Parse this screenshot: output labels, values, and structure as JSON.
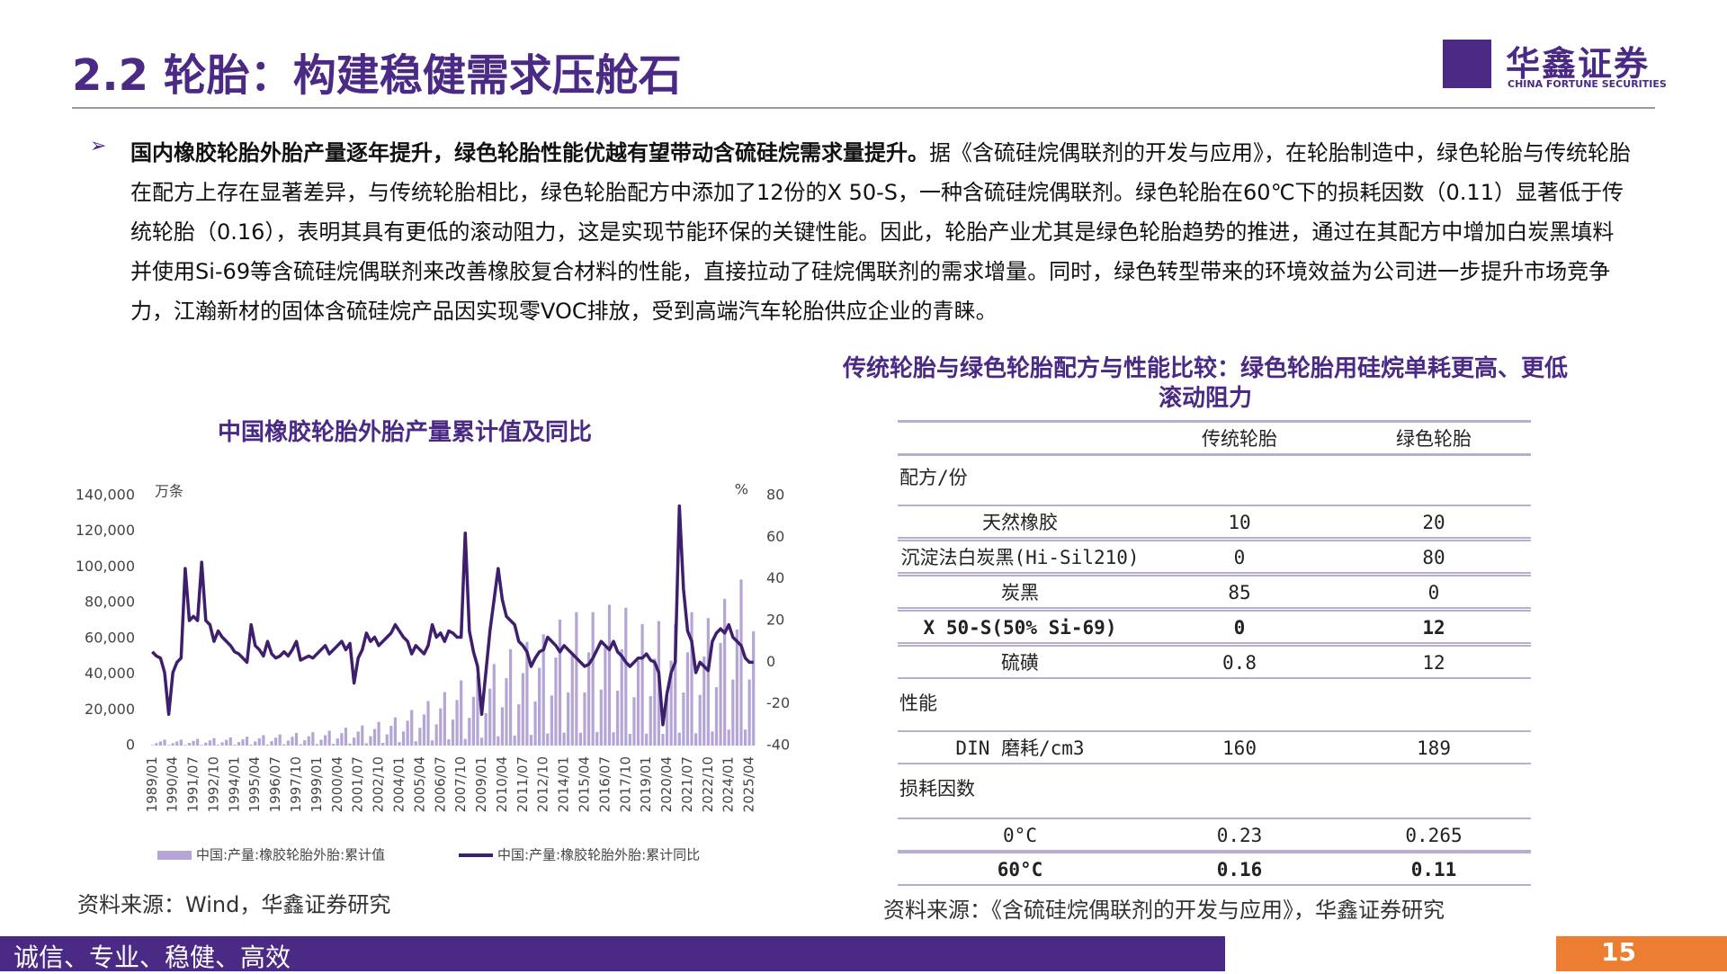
{
  "header": {
    "title": "2.2 轮胎：构建稳健需求压舱石",
    "logo_cn": "华鑫证券",
    "logo_en": "CHINA FORTUNE SECURITIES"
  },
  "bullet": {
    "bold": "国内橡胶轮胎外胎产量逐年提升，绿色轮胎性能优越有望带动含硫硅烷需求量提升。",
    "text": "据《含硫硅烷偶联剂的开发与应用》，在轮胎制造中，绿色轮胎与传统轮胎在配方上存在显著差异，与传统轮胎相比，绿色轮胎配方中添加了12份的X 50-S，一种含硫硅烷偶联剂。绿色轮胎在60℃下的损耗因数（0.11）显著低于传统轮胎（0.16），表明其具有更低的滚动阻力，这是实现节能环保的关键性能。因此，轮胎产业尤其是绿色轮胎趋势的推进，通过在其配方中增加白炭黑填料并使用Si-69等含硫硅烷偶联剂来改善橡胶复合材料的性能，直接拉动了硅烷偶联剂的需求增量。同时，绿色转型带来的环境效益为公司进一步提升市场竞争力，江瀚新材的固体含硫硅烷产品因实现零VOC排放，受到高端汽车轮胎供应企业的青睐。"
  },
  "chart_data": {
    "type": "bar-line",
    "title": "中国橡胶轮胎外胎产量累计值及同比",
    "ylabel": "万条",
    "y2label": "%",
    "categories": [
      "1989/01",
      null,
      null,
      null,
      null,
      "1990/04",
      null,
      null,
      null,
      null,
      "1991/07",
      null,
      null,
      null,
      null,
      "1992/10",
      null,
      null,
      null,
      null,
      "1994/01",
      null,
      null,
      null,
      null,
      "1995/04",
      null,
      null,
      null,
      null,
      "1996/07",
      null,
      null,
      null,
      null,
      "1997/10",
      null,
      null,
      null,
      null,
      "1999/01",
      null,
      null,
      null,
      null,
      "2000/04",
      null,
      null,
      null,
      null,
      "2001/07",
      null,
      null,
      null,
      null,
      "2002/10",
      null,
      null,
      null,
      null,
      "2004/01",
      null,
      null,
      null,
      null,
      "2005/04",
      null,
      null,
      null,
      null,
      "2006/07",
      null,
      null,
      null,
      null,
      "2007/10",
      null,
      null,
      null,
      null,
      "2009/01",
      null,
      null,
      null,
      null,
      "2010/04",
      null,
      null,
      null,
      null,
      "2011/07",
      null,
      null,
      null,
      null,
      "2012/10",
      null,
      null,
      null,
      null,
      "2014/01",
      null,
      null,
      null,
      null,
      "2015/04",
      null,
      null,
      null,
      null,
      "2016/07",
      null,
      null,
      null,
      null,
      "2017/10",
      null,
      null,
      null,
      null,
      "2019/01",
      null,
      null,
      null,
      null,
      "2020/04",
      null,
      null,
      null,
      null,
      "2021/07",
      null,
      null,
      null,
      null,
      "2022/10",
      null,
      null,
      null,
      null,
      "2024/01",
      null,
      null,
      null,
      null,
      "2025/04",
      null
    ],
    "series": [
      {
        "name": "中国:产量:橡胶轮胎外胎:累计值",
        "color": "#b4a5d6",
        "values": [
          320,
          1320,
          2320,
          3320,
          320,
          1320,
          2320,
          3320,
          360,
          1490,
          2610,
          3740,
          400,
          1650,
          2900,
          4150,
          440,
          1820,
          3190,
          4570,
          480,
          1980,
          3480,
          4980,
          560,
          2310,
          4060,
          5810,
          600,
          2480,
          4350,
          6230,
          680,
          2810,
          4930,
          7060,
          720,
          2970,
          5220,
          7470,
          800,
          3300,
          5800,
          8300,
          960,
          3960,
          6960,
          9960,
          1080,
          4460,
          7830,
          11210,
          1280,
          5280,
          9280,
          13280,
          1520,
          6270,
          11020,
          15770,
          1920,
          7920,
          13920,
          19920,
          2400,
          9900,
          17400,
          24900,
          2880,
          11880,
          20880,
          29880,
          3520,
          14520,
          25520,
          36520,
          3760,
          15510,
          27260,
          39010,
          4400,
          18150,
          31900,
          45650,
          5200,
          21450,
          37700,
          53950,
          5600,
          23100,
          40600,
          58100,
          6000,
          24750,
          43500,
          62250,
          6800,
          28050,
          49300,
          70550,
          7200,
          29700,
          52200,
          74700,
          7200,
          29700,
          52200,
          74700,
          7600,
          31350,
          55100,
          78850,
          7440,
          30690,
          53940,
          77190,
          6560,
          27060,
          47560,
          68060,
          6720,
          27720,
          48720,
          69720,
          6560,
          27060,
          47560,
          68060,
          7200,
          29700,
          52200,
          74700,
          6880,
          28380,
          49880,
          71380,
          7920,
          32670,
          57420,
          82170,
          8960,
          36960,
          64960,
          92960,
          9000,
          37000,
          64000
        ]
      },
      {
        "name": "中国:产量:橡胶轮胎外胎:累计同比",
        "color": "#3e1f6e",
        "axis": "y2",
        "values": [
          5,
          3,
          2,
          -5,
          -25,
          -5,
          0,
          2,
          45,
          20,
          22,
          20,
          48,
          20,
          18,
          10,
          15,
          12,
          10,
          8,
          5,
          4,
          2,
          0,
          18,
          8,
          6,
          3,
          10,
          4,
          2,
          3,
          5,
          3,
          6,
          10,
          1,
          2,
          3,
          2,
          4,
          6,
          8,
          4,
          6,
          8,
          10,
          6,
          9,
          -10,
          2,
          6,
          14,
          10,
          12,
          8,
          10,
          12,
          14,
          18,
          15,
          12,
          10,
          4,
          8,
          6,
          4,
          8,
          18,
          12,
          14,
          10,
          15,
          14,
          12,
          12,
          62,
          15,
          5,
          -2,
          -25,
          -5,
          15,
          30,
          45,
          30,
          22,
          20,
          18,
          10,
          8,
          5,
          -2,
          2,
          5,
          6,
          12,
          10,
          8,
          5,
          8,
          6,
          4,
          2,
          0,
          -2,
          -1,
          2,
          6,
          10,
          8,
          6,
          10,
          5,
          3,
          0,
          -2,
          0,
          2,
          2,
          4,
          1,
          0,
          -5,
          -30,
          -15,
          -5,
          0,
          75,
          35,
          15,
          10,
          -5,
          0,
          -2,
          -4,
          10,
          14,
          16,
          14,
          18,
          12,
          10,
          8,
          2,
          0,
          0
        ]
      }
    ],
    "ylim": [
      0,
      140000
    ],
    "yticks": [
      0,
      {
        "value": 20000,
        "label": "20,000"
      },
      {
        "value": 40000,
        "label": "40,000"
      },
      {
        "value": 60000,
        "label": "60,000"
      },
      {
        "value": 80000,
        "label": "80,000"
      },
      {
        "value": 100000,
        "label": "100,000"
      },
      {
        "value": 120000,
        "label": "120,000"
      },
      {
        "value": 140000,
        "label": "140,000"
      }
    ],
    "y2lim": [
      -40,
      80
    ],
    "y2ticks": [
      -40,
      -20,
      0,
      20,
      40,
      60,
      80
    ],
    "legend": "bottom"
  },
  "source1": "资料来源：Wind，华鑫证券研究",
  "table": {
    "title": "传统轮胎与绿色轮胎配方与性能比较：绿色轮胎用硅烷单耗更高、更低滚动阻力",
    "header": [
      "传统轮胎",
      "绿色轮胎"
    ],
    "rows": [
      [
        "配方/份"
      ],
      [
        "天然橡胶",
        "10",
        "20"
      ],
      [
        "沉淀法白炭黑(Hi-Sil210)",
        "0",
        "80"
      ],
      [
        "炭黑",
        "85",
        "0"
      ],
      [
        "X 50-S(50% Si-69)",
        "0",
        "12"
      ],
      [
        "硫磺",
        "0.8",
        "12"
      ],
      [
        "性能"
      ],
      [
        "DIN 磨耗/cm3",
        "160",
        "189"
      ],
      [
        "损耗因数"
      ],
      [
        "0°C",
        "0.23",
        "0.265"
      ],
      [
        "60°C",
        "0.16",
        "0.11"
      ]
    ]
  },
  "source2": "资料来源：《含硫硅烷偶联剂的开发与应用》，华鑫证券研究",
  "footer": {
    "slogan": "诚信、专业、稳健、高效",
    "page": "15"
  }
}
